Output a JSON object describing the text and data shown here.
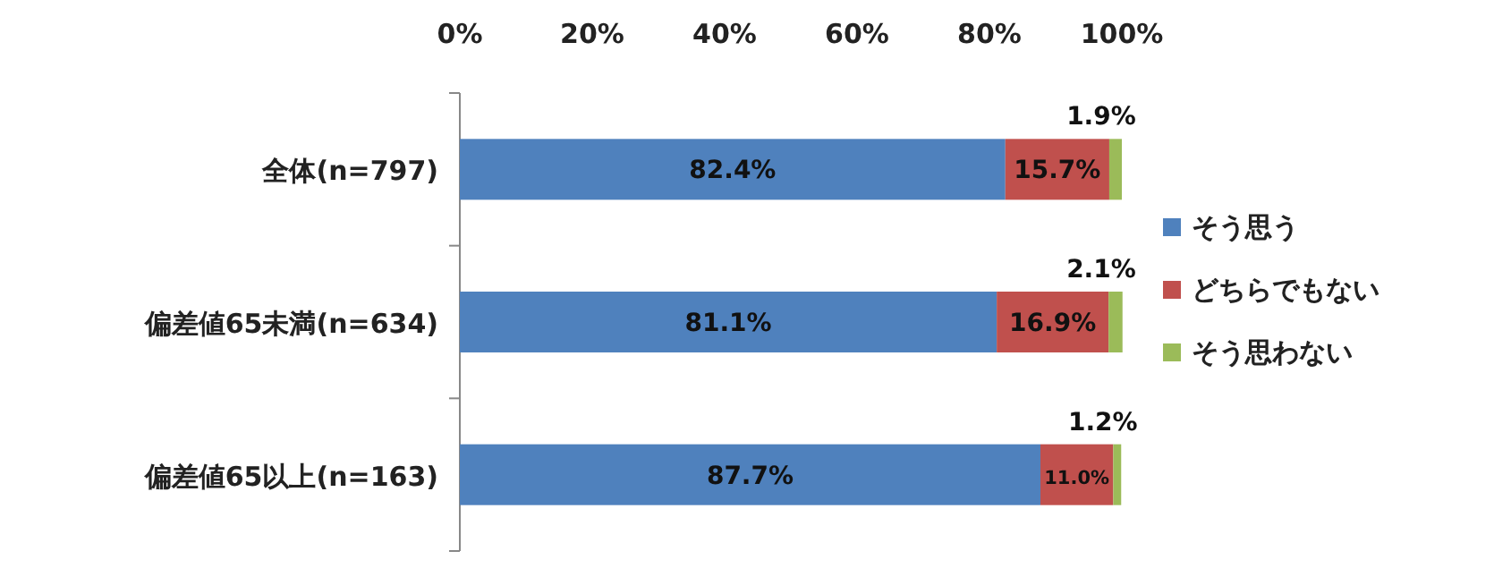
{
  "chart_data": {
    "type": "bar",
    "orientation": "horizontal",
    "stacked": true,
    "legend": "right",
    "categories": [
      "全体(n=797)",
      "偏差値65未満(n=634)",
      "偏差値65以上(n=163)"
    ],
    "xlim": [
      0,
      100
    ],
    "xticks": [
      {
        "value": 0,
        "label": "0%"
      },
      {
        "value": 20,
        "label": "20%"
      },
      {
        "value": 40,
        "label": "40%"
      },
      {
        "value": 60,
        "label": "60%"
      },
      {
        "value": 80,
        "label": "80%"
      },
      {
        "value": 100,
        "label": "100%"
      }
    ],
    "series": [
      {
        "name": "そう思う",
        "color": "#4f81bd",
        "values": [
          82.4,
          81.1,
          87.7
        ],
        "value_labels": [
          "82.4%",
          "81.1%",
          "87.7%"
        ]
      },
      {
        "name": "どちらでもない",
        "color": "#c0504d",
        "values": [
          15.7,
          16.9,
          11.0
        ],
        "value_labels": [
          "15.7%",
          "16.9%",
          "11.0%"
        ]
      },
      {
        "name": "そう思わない",
        "color": "#9bbb59",
        "values": [
          1.9,
          2.1,
          1.2
        ],
        "value_labels": [
          "1.9%",
          "2.1%",
          "1.2%"
        ]
      }
    ]
  }
}
